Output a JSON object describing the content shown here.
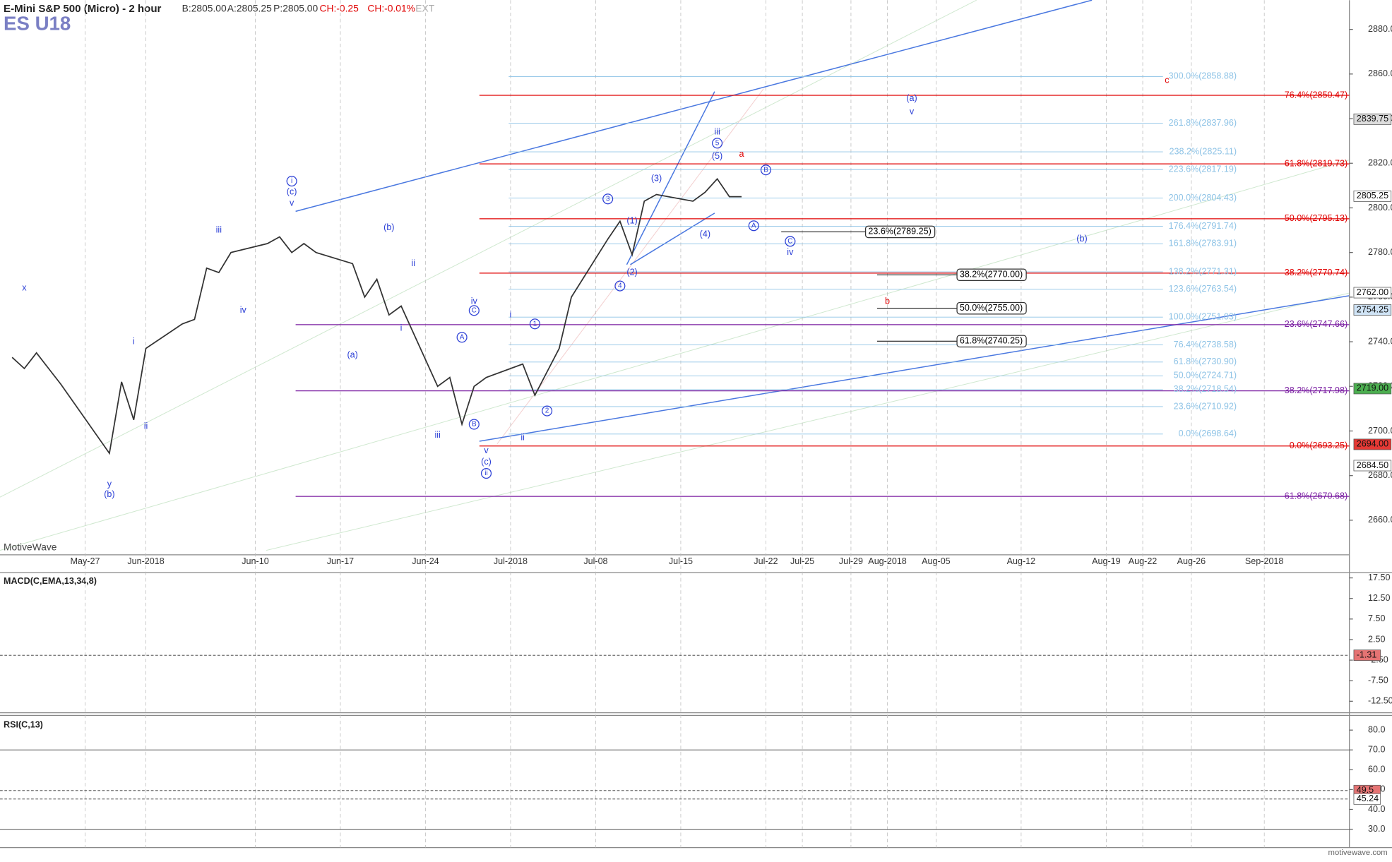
{
  "header": {
    "symbol_name": "E-Mini S&P 500 (Micro) - 2 hour",
    "bid": "B:2805.00",
    "ask": "A:2805.25",
    "price": "P:2805.00",
    "change": "CH:-0.25",
    "change_pct": "CH:-0.01%",
    "session": "EXT",
    "ticker": "ES U18",
    "watermark": "MotiveWave",
    "footer": "motivewave.com"
  },
  "chart_data": {
    "type": "line",
    "x": [
      "2018-05-21",
      "2018-05-22",
      "2018-05-23",
      "2018-05-24",
      "2018-05-25",
      "2018-05-29",
      "2018-05-30",
      "2018-05-31",
      "2018-06-01",
      "2018-06-04",
      "2018-06-05",
      "2018-06-06",
      "2018-06-07",
      "2018-06-08",
      "2018-06-11",
      "2018-06-12",
      "2018-06-13",
      "2018-06-14",
      "2018-06-15",
      "2018-06-18",
      "2018-06-19",
      "2018-06-20",
      "2018-06-21",
      "2018-06-22",
      "2018-06-25",
      "2018-06-26",
      "2018-06-27",
      "2018-06-28",
      "2018-06-29",
      "2018-07-02",
      "2018-07-03",
      "2018-07-05",
      "2018-07-06",
      "2018-07-09",
      "2018-07-10",
      "2018-07-11",
      "2018-07-12",
      "2018-07-13",
      "2018-07-16",
      "2018-07-17",
      "2018-07-18",
      "2018-07-19",
      "2018-07-20"
    ],
    "series": [
      {
        "name": "ES U18",
        "color": "#333333",
        "values": [
          2733,
          2728,
          2735,
          2728,
          2721,
          2690,
          2722,
          2705,
          2737,
          2748,
          2750,
          2773,
          2771,
          2780,
          2784,
          2787,
          2780,
          2784,
          2780,
          2775,
          2760,
          2768,
          2752,
          2756,
          2720,
          2724,
          2703,
          2720,
          2724,
          2730,
          2716,
          2737,
          2760,
          2786,
          2794,
          2779,
          2803,
          2806,
          2803,
          2807,
          2813,
          2805,
          2805
        ]
      }
    ],
    "xlim": [
      "2018-05-20",
      "2018-09-08"
    ],
    "xticks": [
      {
        "value": "2018-05-27",
        "label": "May-27"
      },
      {
        "value": "2018-06-01",
        "label": "Jun-2018"
      },
      {
        "value": "2018-06-10",
        "label": "Jun-10"
      },
      {
        "value": "2018-06-17",
        "label": "Jun-17"
      },
      {
        "value": "2018-06-24",
        "label": "Jun-24"
      },
      {
        "value": "2018-07-01",
        "label": "Jul-2018"
      },
      {
        "value": "2018-07-08",
        "label": "Jul-08"
      },
      {
        "value": "2018-07-15",
        "label": "Jul-15"
      },
      {
        "value": "2018-07-22",
        "label": "Jul-22"
      },
      {
        "value": "2018-07-25",
        "label": "Jul-25"
      },
      {
        "value": "2018-07-29",
        "label": "Jul-29"
      },
      {
        "value": "2018-08-01",
        "label": "Aug-2018"
      },
      {
        "value": "2018-08-05",
        "label": "Aug-05"
      },
      {
        "value": "2018-08-12",
        "label": "Aug-12"
      },
      {
        "value": "2018-08-19",
        "label": "Aug-19"
      },
      {
        "value": "2018-08-22",
        "label": "Aug-22"
      },
      {
        "value": "2018-08-26",
        "label": "Aug-26"
      },
      {
        "value": "2018-09-01",
        "label": "Sep-2018"
      }
    ],
    "ylim": [
      2644.5,
      2893.1
    ],
    "yticks": [
      {
        "value": 2660,
        "label": "2660.00"
      },
      {
        "value": 2680,
        "label": "2680.00"
      },
      {
        "value": 2700,
        "label": "2700.00"
      },
      {
        "value": 2720,
        "label": "2720.00"
      },
      {
        "value": 2740,
        "label": "2740.00"
      },
      {
        "value": 2760,
        "label": "2760.00"
      },
      {
        "value": 2780,
        "label": "2780.00"
      },
      {
        "value": 2800,
        "label": "2800.00"
      },
      {
        "value": 2820,
        "label": "2820.00"
      },
      {
        "value": 2840,
        "label": "2840.00"
      },
      {
        "value": 2860,
        "label": "2860.00"
      },
      {
        "value": 2880,
        "label": "2880.00"
      }
    ],
    "grid": true,
    "price_markers": [
      {
        "value": 2839.75,
        "label": "2839.75",
        "color": "#dddddd"
      },
      {
        "value": 2805.25,
        "label": "2805.25",
        "color": "#ffffff"
      },
      {
        "value": 2762,
        "label": "2762.00",
        "color": "#ffffff"
      },
      {
        "value": 2754.25,
        "label": "2754.25",
        "color": "#cfe3f5"
      },
      {
        "value": 2719,
        "label": "2719.00",
        "color": "#4caf50"
      },
      {
        "value": 2694,
        "label": "2694.00",
        "color": "#e53935"
      },
      {
        "value": 2684.5,
        "label": "2684.50",
        "color": "#ffffff"
      }
    ],
    "fib_red": {
      "color": "#e00000",
      "levels": [
        {
          "value": 2850.47,
          "label": "76.4%(2850.47)"
        },
        {
          "value": 2819.73,
          "label": "61.8%(2819.73)"
        },
        {
          "value": 2795.13,
          "label": "50.0%(2795.13)"
        },
        {
          "value": 2770.74,
          "label": "38.2%(2770.74)"
        },
        {
          "value": 2693.25,
          "label": "0.0%(2693.25)"
        }
      ]
    },
    "fib_purple": {
      "color": "#7b1fa2",
      "levels": [
        {
          "value": 2747.66,
          "label": "23.6%(2747.66)"
        },
        {
          "value": 2717.98,
          "label": "38.2%(2717.98)"
        },
        {
          "value": 2670.68,
          "label": "61.8%(2670.68)"
        }
      ]
    },
    "fib_blue": {
      "color": "#8ec3e6",
      "levels": [
        {
          "value": 2858.88,
          "label": "300.0%(2858.88)"
        },
        {
          "value": 2837.96,
          "label": "261.8%(2837.96)"
        },
        {
          "value": 2825.11,
          "label": "238.2%(2825.11)"
        },
        {
          "value": 2817.19,
          "label": "223.6%(2817.19)"
        },
        {
          "value": 2804.43,
          "label": "200.0%(2804.43)"
        },
        {
          "value": 2791.74,
          "label": "176.4%(2791.74)"
        },
        {
          "value": 2783.91,
          "label": "161.8%(2783.91)"
        },
        {
          "value": 2771.31,
          "label": "138.2%(2771.31)"
        },
        {
          "value": 2763.54,
          "label": "123.6%(2763.54)"
        },
        {
          "value": 2751.03,
          "label": "100.0%(2751.03)"
        },
        {
          "value": 2738.58,
          "label": "76.4%(2738.58)"
        },
        {
          "value": 2730.9,
          "label": "61.8%(2730.90)"
        },
        {
          "value": 2724.71,
          "label": "50.0%(2724.71)"
        },
        {
          "value": 2718.54,
          "label": "38.2%(2718.54)"
        },
        {
          "value": 2710.92,
          "label": "23.6%(2710.92)"
        },
        {
          "value": 2698.64,
          "label": "0.0%(2698.64)"
        }
      ]
    },
    "fib_black": {
      "color": "#000000",
      "levels": [
        {
          "value": 2789.25,
          "label": "23.6%(2789.25)"
        },
        {
          "value": 2770.0,
          "label": "38.2%(2770.00)"
        },
        {
          "value": 2755.0,
          "label": "50.0%(2755.00)"
        },
        {
          "value": 2740.25,
          "label": "61.8%(2740.25)"
        }
      ]
    },
    "annotations": [
      {
        "text": "x",
        "x": "2018-05-22",
        "y": 2764,
        "color": "#2b3fd6"
      },
      {
        "text": "i",
        "x": "2018-05-31",
        "y": 2740,
        "color": "#2b3fd6"
      },
      {
        "text": "ii",
        "x": "2018-06-01",
        "y": 2702,
        "color": "#2b3fd6"
      },
      {
        "text": "y",
        "x": "2018-05-29",
        "y": 2676,
        "color": "#2b3fd6"
      },
      {
        "text": "(b)",
        "x": "2018-05-29",
        "y": 2671.5,
        "color": "#2b3fd6"
      },
      {
        "text": "iii",
        "x": "2018-06-07",
        "y": 2790,
        "color": "#2b3fd6"
      },
      {
        "text": "iv",
        "x": "2018-06-09",
        "y": 2754,
        "color": "#2b3fd6"
      },
      {
        "text": "v",
        "x": "2018-06-13",
        "y": 2802,
        "color": "#2b3fd6"
      },
      {
        "text": "(c)",
        "x": "2018-06-13",
        "y": 2807,
        "color": "#2b3fd6"
      },
      {
        "text": "i",
        "x": "2018-06-13",
        "y": 2812,
        "color": "#2b3fd6",
        "circled": true
      },
      {
        "text": "(b)",
        "x": "2018-06-21",
        "y": 2791,
        "color": "#2b3fd6"
      },
      {
        "text": "ii",
        "x": "2018-06-23",
        "y": 2775,
        "color": "#2b3fd6"
      },
      {
        "text": "(a)",
        "x": "2018-06-18",
        "y": 2734,
        "color": "#2b3fd6"
      },
      {
        "text": "i",
        "x": "2018-06-22",
        "y": 2746,
        "color": "#2b3fd6"
      },
      {
        "text": "iii",
        "x": "2018-06-25",
        "y": 2698,
        "color": "#2b3fd6"
      },
      {
        "text": "iv",
        "x": "2018-06-28",
        "y": 2758,
        "color": "#2b3fd6"
      },
      {
        "text": "C",
        "x": "2018-06-28",
        "y": 2754,
        "color": "#2b3fd6",
        "circled": true
      },
      {
        "text": "A",
        "x": "2018-06-27",
        "y": 2742,
        "color": "#2b3fd6",
        "circled": true
      },
      {
        "text": "B",
        "x": "2018-06-28",
        "y": 2703,
        "color": "#2b3fd6",
        "circled": true
      },
      {
        "text": "v",
        "x": "2018-06-29",
        "y": 2691,
        "color": "#2b3fd6"
      },
      {
        "text": "(c)",
        "x": "2018-06-29",
        "y": 2686,
        "color": "#2b3fd6"
      },
      {
        "text": "ii",
        "x": "2018-06-29",
        "y": 2681,
        "color": "#2b3fd6",
        "circled": true
      },
      {
        "text": "i",
        "x": "2018-07-01",
        "y": 2752,
        "color": "#2b3fd6"
      },
      {
        "text": "1",
        "x": "2018-07-03",
        "y": 2748,
        "color": "#2b3fd6",
        "circled": true
      },
      {
        "text": "ii",
        "x": "2018-07-02",
        "y": 2697,
        "color": "#2b3fd6"
      },
      {
        "text": "2",
        "x": "2018-07-04",
        "y": 2709,
        "color": "#2b3fd6",
        "circled": true
      },
      {
        "text": "3",
        "x": "2018-07-09",
        "y": 2804,
        "color": "#2b3fd6",
        "circled": true
      },
      {
        "text": "4",
        "x": "2018-07-10",
        "y": 2765,
        "color": "#2b3fd6",
        "circled": true
      },
      {
        "text": "(1)",
        "x": "2018-07-11",
        "y": 2794,
        "color": "#2b3fd6"
      },
      {
        "text": "(2)",
        "x": "2018-07-11",
        "y": 2771,
        "color": "#2b3fd6"
      },
      {
        "text": "(3)",
        "x": "2018-07-13",
        "y": 2813,
        "color": "#2b3fd6"
      },
      {
        "text": "(4)",
        "x": "2018-07-17",
        "y": 2788,
        "color": "#2b3fd6"
      },
      {
        "text": "(5)",
        "x": "2018-07-18",
        "y": 2823,
        "color": "#2b3fd6"
      },
      {
        "text": "5",
        "x": "2018-07-18",
        "y": 2829,
        "color": "#2b3fd6",
        "circled": true
      },
      {
        "text": "iii",
        "x": "2018-07-18",
        "y": 2834,
        "color": "#2b3fd6"
      },
      {
        "text": "a",
        "x": "2018-07-20",
        "y": 2824,
        "color": "#e00000"
      },
      {
        "text": "B",
        "x": "2018-07-22",
        "y": 2817,
        "color": "#2b3fd6",
        "circled": true
      },
      {
        "text": "A",
        "x": "2018-07-21",
        "y": 2792,
        "color": "#2b3fd6",
        "circled": true
      },
      {
        "text": "C",
        "x": "2018-07-24",
        "y": 2785,
        "color": "#2b3fd6",
        "circled": true
      },
      {
        "text": "iv",
        "x": "2018-07-24",
        "y": 2780,
        "color": "#2b3fd6"
      },
      {
        "text": "(a)",
        "x": "2018-08-03",
        "y": 2849,
        "color": "#2b3fd6"
      },
      {
        "text": "v",
        "x": "2018-08-03",
        "y": 2843,
        "color": "#2b3fd6"
      },
      {
        "text": "(b)",
        "x": "2018-08-17",
        "y": 2786,
        "color": "#2b3fd6"
      },
      {
        "text": "c",
        "x": "2018-08-24",
        "y": 2857,
        "color": "#e00000"
      },
      {
        "text": "b",
        "x": "2018-08-01",
        "y": 2758,
        "color": "#e00000"
      }
    ]
  },
  "macd": {
    "title": "MACD(C,EMA,13,34,8)",
    "ylim": [
      -15.3,
      18.8
    ],
    "yticks": [
      {
        "value": 17.5,
        "label": "17.50"
      },
      {
        "value": 12.5,
        "label": "12.50"
      },
      {
        "value": 7.5,
        "label": "7.50"
      },
      {
        "value": 2.5,
        "label": "2.50"
      },
      {
        "value": -2.5,
        "label": "-2.50"
      },
      {
        "value": -7.5,
        "label": "-7.50"
      },
      {
        "value": -12.5,
        "label": "-12.50"
      }
    ],
    "current": {
      "value": -1.31,
      "label": "-1.31"
    }
  },
  "rsi": {
    "title": "RSI(C,13)",
    "ylim": [
      20.7,
      87.4
    ],
    "yticks": [
      {
        "value": 80,
        "label": "80.0"
      },
      {
        "value": 70,
        "label": "70.0"
      },
      {
        "value": 60,
        "label": "60.0"
      },
      {
        "value": 50,
        "label": "50.0"
      },
      {
        "value": 40,
        "label": "40.0"
      },
      {
        "value": 30,
        "label": "30.0"
      }
    ],
    "current": [
      {
        "value": 49.5,
        "label": "49.5"
      },
      {
        "value": 45.24,
        "label": "45.24"
      }
    ]
  }
}
